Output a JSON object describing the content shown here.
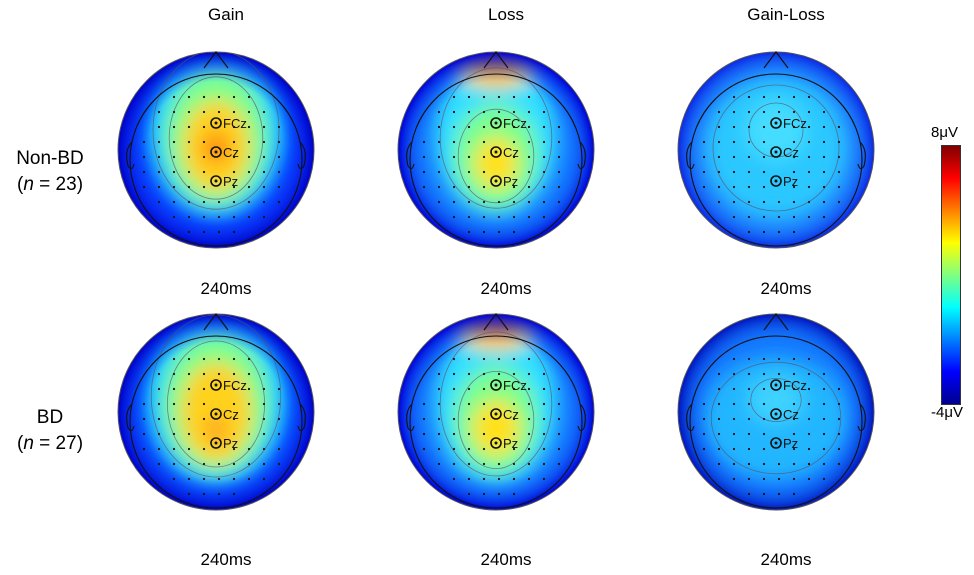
{
  "columns": [
    "Gain",
    "Loss",
    "Gain-Loss"
  ],
  "rows": [
    {
      "label": "Non-BD",
      "n_prefix": "n",
      "n_suffix": " = 23"
    },
    {
      "label": "BD",
      "n_prefix": "n",
      "n_suffix": " = 27"
    }
  ],
  "time_label": "240ms",
  "electrodes": [
    "FCz",
    "Cz",
    "Pz"
  ],
  "colorbar": {
    "max_label": "8μV",
    "min_label": "-4μV",
    "colors": [
      "#00008f",
      "#0000ff",
      "#0080ff",
      "#00ffff",
      "#80ff80",
      "#ffff00",
      "#ff8000",
      "#ff0000",
      "#800000"
    ]
  }
}
